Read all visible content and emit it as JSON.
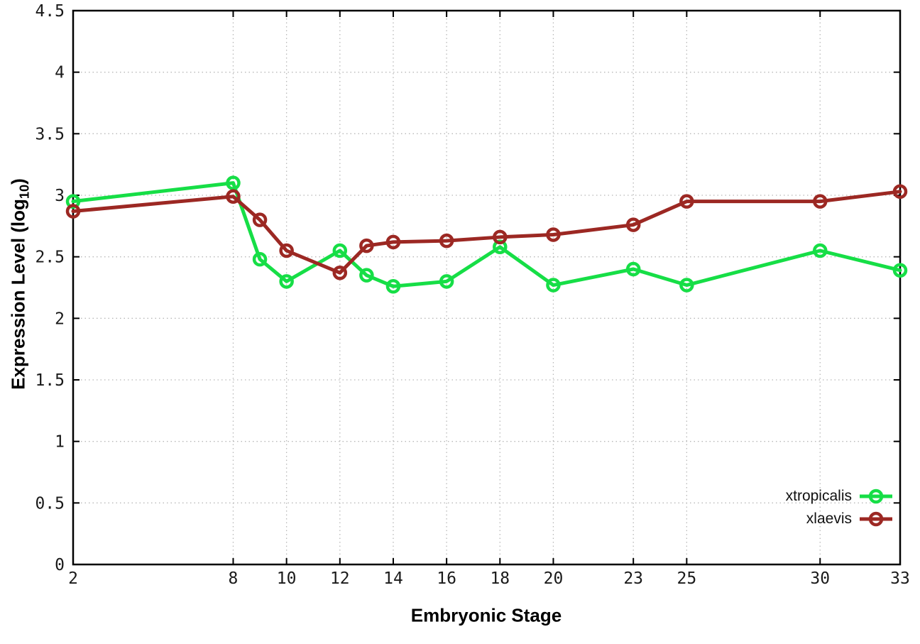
{
  "chart_data": {
    "type": "line",
    "x": [
      2,
      8,
      9,
      10,
      12,
      13,
      14,
      16,
      18,
      20,
      23,
      25,
      30,
      33
    ],
    "series": [
      {
        "name": "xtropicalis",
        "color": "#16DE46",
        "marker": "open-circle",
        "values": [
          2.95,
          3.1,
          2.48,
          2.3,
          2.55,
          2.35,
          2.26,
          2.3,
          2.58,
          2.27,
          2.4,
          2.27,
          2.55,
          2.39
        ]
      },
      {
        "name": "xlaevis",
        "color": "#9C2823",
        "marker": "open-circle",
        "values": [
          2.87,
          2.99,
          2.8,
          2.55,
          2.37,
          2.59,
          2.62,
          2.63,
          2.66,
          2.68,
          2.76,
          2.95,
          2.95,
          3.03
        ]
      }
    ],
    "title": "",
    "xlabel": "Embryonic Stage",
    "ylabel": "Expression Level (log10)",
    "ylabel_parts": {
      "prefix": "Expression Level (log",
      "sub": "10",
      "suffix": ")"
    },
    "xlim": [
      2,
      33
    ],
    "ylim": [
      0,
      4.5
    ],
    "xticks": [
      2,
      8,
      10,
      12,
      14,
      16,
      18,
      20,
      23,
      25,
      30,
      33
    ],
    "yticks": [
      0,
      0.5,
      1,
      1.5,
      2,
      2.5,
      3,
      3.5,
      4,
      4.5
    ],
    "grid": true,
    "grid_style": "dotted",
    "legend_position": "bottom-right",
    "colors": {
      "axis": "#000000",
      "grid": "#b8b8b8",
      "background": "#ffffff",
      "text": "#1a1a1a"
    }
  }
}
